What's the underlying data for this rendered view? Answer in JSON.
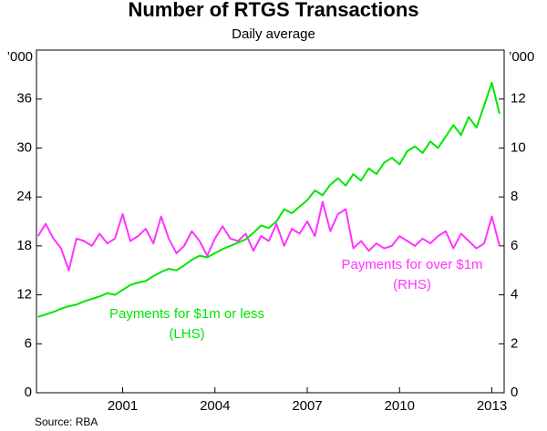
{
  "chart_data": {
    "type": "line",
    "title": "Number of RTGS Transactions",
    "subtitle": "Daily average",
    "y_unit": "’000",
    "y2_unit": "’000",
    "source": "Source: RBA",
    "x": [
      1998.25,
      1998.5,
      1998.75,
      1999,
      1999.25,
      1999.5,
      1999.75,
      2000,
      2000.25,
      2000.5,
      2000.75,
      2001,
      2001.25,
      2001.5,
      2001.75,
      2002,
      2002.25,
      2002.5,
      2002.75,
      2003,
      2003.25,
      2003.5,
      2003.75,
      2004,
      2004.25,
      2004.5,
      2004.75,
      2005,
      2005.25,
      2005.5,
      2005.75,
      2006,
      2006.25,
      2006.5,
      2006.75,
      2007,
      2007.25,
      2007.5,
      2007.75,
      2008,
      2008.25,
      2008.5,
      2008.75,
      2009,
      2009.25,
      2009.5,
      2009.75,
      2010,
      2010.25,
      2010.5,
      2010.75,
      2011,
      2011.25,
      2011.5,
      2011.75,
      2012,
      2012.25,
      2012.5,
      2012.75,
      2013,
      2013.25
    ],
    "xlim": [
      1998.2,
      2013.4
    ],
    "xticks": [
      2001,
      2004,
      2007,
      2010,
      2013
    ],
    "ylim": [
      0,
      42
    ],
    "yticks": [
      0,
      6,
      12,
      18,
      24,
      30,
      36
    ],
    "y2lim": [
      0,
      14
    ],
    "y2ticks": [
      0,
      2,
      4,
      6,
      8,
      10,
      12
    ],
    "series": [
      {
        "name": "Payments for $1m or less",
        "annotation": "(LHS)",
        "color": "#00e600",
        "values": [
          9.3,
          9.6,
          9.9,
          10.3,
          10.6,
          10.8,
          11.2,
          11.5,
          11.8,
          12.2,
          12.0,
          12.6,
          13.2,
          13.5,
          13.7,
          14.3,
          14.8,
          15.2,
          15.0,
          15.6,
          16.3,
          16.8,
          16.6,
          17.1,
          17.6,
          18.0,
          18.4,
          18.8,
          19.6,
          20.5,
          20.2,
          21.0,
          22.5,
          22.0,
          22.8,
          23.6,
          24.8,
          24.2,
          25.5,
          26.3,
          25.4,
          26.8,
          26.0,
          27.5,
          26.8,
          28.2,
          28.8,
          28.0,
          29.6,
          30.2,
          29.4,
          30.8,
          30.0,
          31.4,
          32.8,
          31.6,
          33.8,
          32.5,
          35.2,
          38.0,
          34.2
        ]
      },
      {
        "name": "Payments for over $1m",
        "annotation": "(RHS)",
        "color": "#ff33ff",
        "axis": "y2",
        "values": [
          6.4,
          6.9,
          6.3,
          5.9,
          5.0,
          6.3,
          6.2,
          6.0,
          6.5,
          6.1,
          6.3,
          7.3,
          6.2,
          6.4,
          6.7,
          6.1,
          7.2,
          6.3,
          5.7,
          6.0,
          6.6,
          6.2,
          5.6,
          6.3,
          6.8,
          6.3,
          6.2,
          6.5,
          5.8,
          6.4,
          6.2,
          6.9,
          6.0,
          6.7,
          6.5,
          7.0,
          6.4,
          7.8,
          6.6,
          7.3,
          7.5,
          5.9,
          6.2,
          5.8,
          6.1,
          5.9,
          6.0,
          6.4,
          6.2,
          6.0,
          6.3,
          6.1,
          6.4,
          6.6,
          5.9,
          6.5,
          6.2,
          5.9,
          6.1,
          7.2,
          6.0
        ]
      }
    ]
  }
}
